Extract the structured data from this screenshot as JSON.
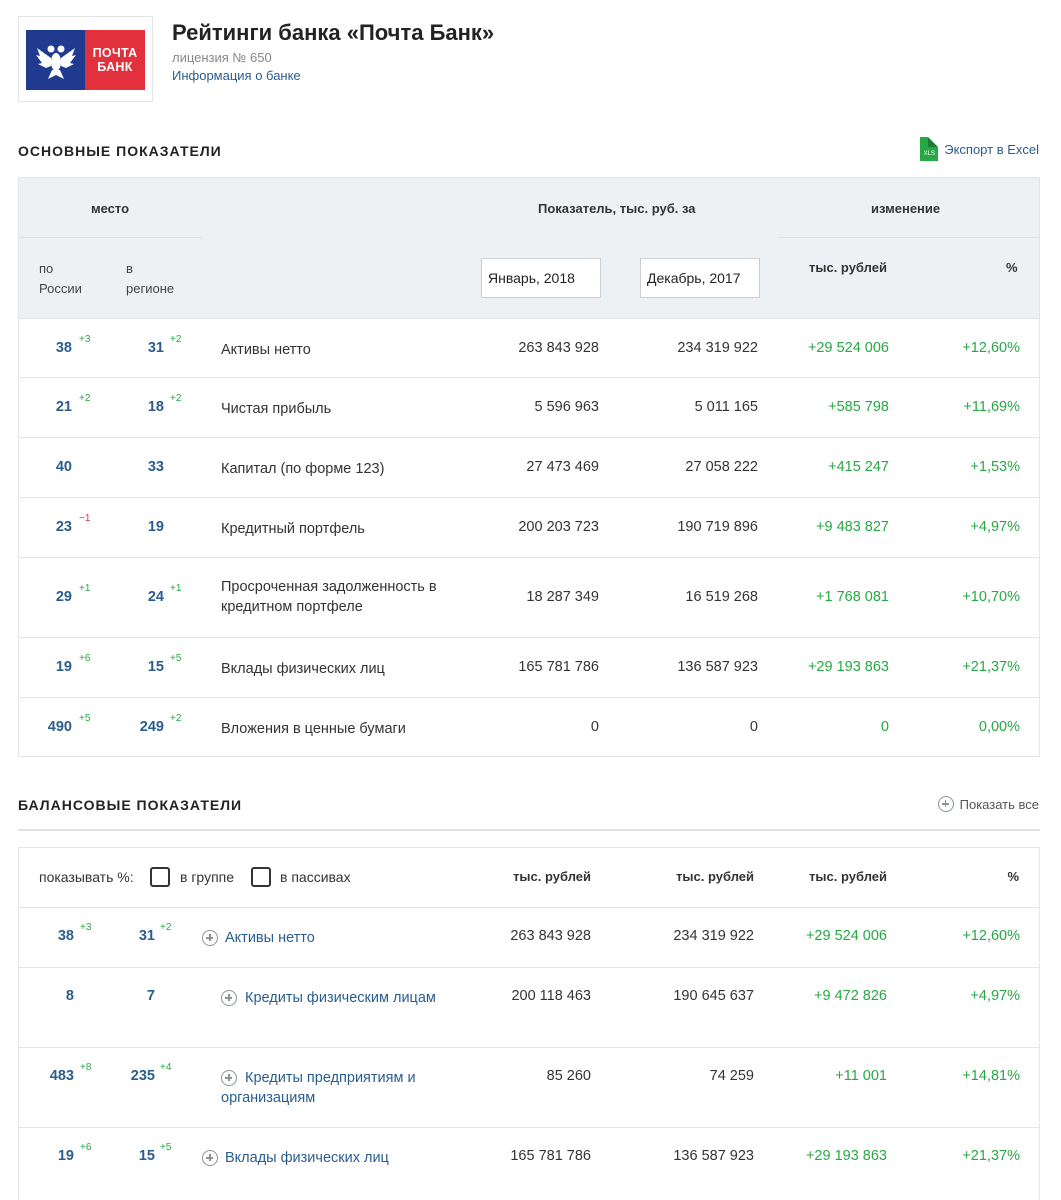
{
  "header": {
    "logo_line1": "ПОЧТА",
    "logo_line2": "БАНК",
    "title": "Рейтинги банка «Почта Банк»",
    "license": "лицензия № 650",
    "info_link": "Информация о банке"
  },
  "main_section": {
    "title": "ОСНОВНЫЕ ПОКАЗАТЕЛИ",
    "export_label": "Экспорт в Excel",
    "xls_label": "XLS",
    "head": {
      "place": "место",
      "indicator": "Показатель, тыс. руб. за",
      "change": "изменение",
      "russia_1": "по",
      "russia_2": "России",
      "region_1": "в",
      "region_2": "регионе",
      "date1": "Январь, 2018",
      "date2": "Декабрь, 2017",
      "thousand_rub": "тыс. рублей",
      "percent": "%"
    },
    "rows": [
      {
        "rank_ru": "38",
        "delta_ru": "+3",
        "rank_reg": "31",
        "delta_reg": "+2",
        "name": "Активы нетто",
        "v1": "263 843 928",
        "v2": "234 319 922",
        "change": "+29 524 006",
        "pct": "+12,60%"
      },
      {
        "rank_ru": "21",
        "delta_ru": "+2",
        "rank_reg": "18",
        "delta_reg": "+2",
        "name": "Чистая прибыль",
        "v1": "5 596 963",
        "v2": "5 011 165",
        "change": "+585 798",
        "pct": "+11,69%"
      },
      {
        "rank_ru": "40",
        "delta_ru": "",
        "rank_reg": "33",
        "delta_reg": "",
        "name": "Капитал (по форме 123)",
        "v1": "27 473 469",
        "v2": "27 058 222",
        "change": "+415 247",
        "pct": "+1,53%"
      },
      {
        "rank_ru": "23",
        "delta_ru": "−1",
        "rank_reg": "19",
        "delta_reg": "",
        "name": "Кредитный портфель",
        "v1": "200 203 723",
        "v2": "190 719 896",
        "change": "+9 483 827",
        "pct": "+4,97%"
      },
      {
        "rank_ru": "29",
        "delta_ru": "+1",
        "rank_reg": "24",
        "delta_reg": "+1",
        "name": "Просроченная задолженность в кредитном портфеле",
        "v1": "18 287 349",
        "v2": "16 519 268",
        "change": "+1 768 081",
        "pct": "+10,70%"
      },
      {
        "rank_ru": "19",
        "delta_ru": "+6",
        "rank_reg": "15",
        "delta_reg": "+5",
        "name": "Вклады физических лиц",
        "v1": "165 781 786",
        "v2": "136 587 923",
        "change": "+29 193 863",
        "pct": "+21,37%"
      },
      {
        "rank_ru": "490",
        "delta_ru": "+5",
        "rank_reg": "249",
        "delta_reg": "+2",
        "name": "Вложения в ценные бумаги",
        "v1": "0",
        "v2": "0",
        "change": "0",
        "pct": "0,00%"
      }
    ]
  },
  "balance_section": {
    "title": "БАЛАНСОВЫЕ ПОКАЗАТЕЛИ",
    "show_all": "Показать все",
    "show_pct_label": "показывать %:",
    "in_group": "в группе",
    "in_liabilities": "в пассивах",
    "col1": "тыс. рублей",
    "col2": "тыс. рублей",
    "col3": "тыс. рублей",
    "col4": "%",
    "rows": [
      {
        "rank_ru": "38",
        "delta_ru": "+3",
        "rank_reg": "31",
        "delta_reg": "+2",
        "name": "Активы нетто",
        "v1": "263 843 928",
        "v2": "234 319 922",
        "change": "+29 524 006",
        "pct": "+12,60%"
      },
      {
        "rank_ru": "8",
        "delta_ru": "",
        "rank_reg": "7",
        "delta_reg": "",
        "name": "Кредиты физическим лицам",
        "v1": "200 118 463",
        "v2": "190 645 637",
        "change": "+9 472 826",
        "pct": "+4,97%"
      },
      {
        "rank_ru": "483",
        "delta_ru": "+8",
        "rank_reg": "235",
        "delta_reg": "+4",
        "name": "Кредиты предприятиям и организациям",
        "v1": "85 260",
        "v2": "74 259",
        "change": "+11 001",
        "pct": "+14,81%"
      },
      {
        "rank_ru": "19",
        "delta_ru": "+6",
        "rank_reg": "15",
        "delta_reg": "+5",
        "name": "Вклады физических лиц",
        "v1": "165 781 786",
        "v2": "136 587 923",
        "change": "+29 193 863",
        "pct": "+21,37%"
      }
    ]
  }
}
